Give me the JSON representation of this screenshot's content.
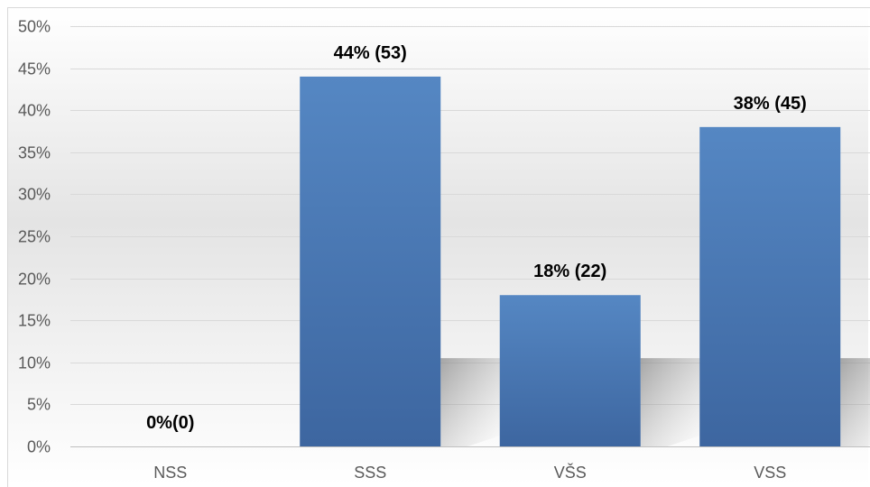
{
  "chart_data": {
    "type": "bar",
    "categories": [
      "NSS",
      "SSS",
      "VŠS",
      "VSS"
    ],
    "values": [
      0,
      44,
      18,
      38
    ],
    "data_labels": [
      "0%(0)",
      "44% (53)",
      "18% (22)",
      "38% (45)"
    ],
    "y_ticks": [
      "0%",
      "5%",
      "10%",
      "15%",
      "20%",
      "25%",
      "30%",
      "35%",
      "40%",
      "45%",
      "50%"
    ],
    "ylim": [
      0,
      50
    ],
    "grid": true,
    "legend": "none",
    "bar_color": "#4a7ab8",
    "gridline_color": "#d9d9d9",
    "axis_label_color": "#595959"
  }
}
